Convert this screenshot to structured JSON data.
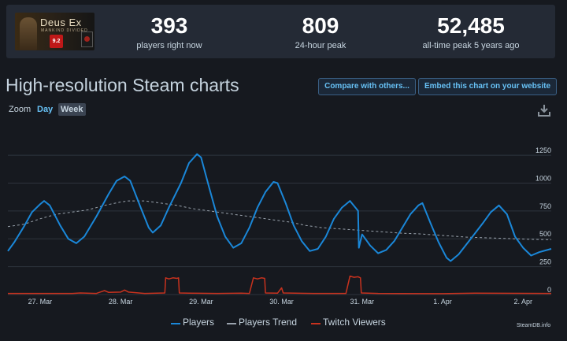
{
  "game": {
    "title": "Deus Ex",
    "subtitle": "MANKIND DIVIDED",
    "rating": "9.2"
  },
  "stats": [
    {
      "value": "393",
      "label": "players right now"
    },
    {
      "value": "809",
      "label": "24-hour peak"
    },
    {
      "value": "52,485",
      "label": "all-time peak 5 years ago"
    }
  ],
  "page": {
    "heading": "High-resolution Steam charts",
    "compare_label": "Compare with others...",
    "embed_label": "Embed this chart on your website",
    "zoom_label": "Zoom",
    "zoom_day": "Day",
    "zoom_week": "Week",
    "credit": "SteamDB.info"
  },
  "colors": {
    "players": "#1a87d8",
    "trend": "#9aa3ad",
    "twitch": "#c8321e",
    "grid": "#2e343d"
  },
  "legend": {
    "players": "Players",
    "trend": "Players Trend",
    "twitch": "Twitch Viewers"
  },
  "chart_data": {
    "type": "line",
    "title": "High-resolution Steam charts",
    "xlabel": "",
    "ylabel": "",
    "x_ticks": [
      "27. Mar",
      "28. Mar",
      "29. Mar",
      "30. Mar",
      "31. Mar",
      "1. Apr",
      "2. Apr"
    ],
    "y_ticks": [
      0,
      250,
      500,
      750,
      1000,
      1250
    ],
    "ylim": [
      0,
      1300
    ],
    "xlim": [
      26.6,
      33.35
    ],
    "series": [
      {
        "name": "Players",
        "points": [
          [
            26.6,
            390
          ],
          [
            26.68,
            470
          ],
          [
            26.8,
            610
          ],
          [
            26.9,
            740
          ],
          [
            27.0,
            810
          ],
          [
            27.05,
            840
          ],
          [
            27.12,
            800
          ],
          [
            27.25,
            620
          ],
          [
            27.35,
            500
          ],
          [
            27.45,
            460
          ],
          [
            27.55,
            520
          ],
          [
            27.7,
            700
          ],
          [
            27.85,
            900
          ],
          [
            27.95,
            1020
          ],
          [
            28.05,
            1060
          ],
          [
            28.12,
            1020
          ],
          [
            28.25,
            780
          ],
          [
            28.35,
            600
          ],
          [
            28.4,
            555
          ],
          [
            28.5,
            620
          ],
          [
            28.6,
            780
          ],
          [
            28.75,
            1000
          ],
          [
            28.85,
            1180
          ],
          [
            28.95,
            1260
          ],
          [
            29.0,
            1230
          ],
          [
            29.1,
            960
          ],
          [
            29.2,
            700
          ],
          [
            29.3,
            520
          ],
          [
            29.4,
            420
          ],
          [
            29.5,
            460
          ],
          [
            29.6,
            600
          ],
          [
            29.7,
            780
          ],
          [
            29.8,
            920
          ],
          [
            29.9,
            1010
          ],
          [
            29.95,
            1000
          ],
          [
            30.05,
            820
          ],
          [
            30.15,
            620
          ],
          [
            30.25,
            480
          ],
          [
            30.35,
            390
          ],
          [
            30.45,
            410
          ],
          [
            30.55,
            520
          ],
          [
            30.65,
            680
          ],
          [
            30.75,
            780
          ],
          [
            30.85,
            840
          ],
          [
            30.95,
            750
          ],
          [
            30.96,
            420
          ],
          [
            31.0,
            540
          ],
          [
            31.1,
            440
          ],
          [
            31.2,
            370
          ],
          [
            31.3,
            400
          ],
          [
            31.4,
            480
          ],
          [
            31.5,
            600
          ],
          [
            31.6,
            720
          ],
          [
            31.7,
            800
          ],
          [
            31.75,
            820
          ],
          [
            31.85,
            640
          ],
          [
            31.95,
            470
          ],
          [
            32.05,
            330
          ],
          [
            32.1,
            300
          ],
          [
            32.2,
            360
          ],
          [
            32.35,
            500
          ],
          [
            32.5,
            640
          ],
          [
            32.6,
            740
          ],
          [
            32.7,
            800
          ],
          [
            32.8,
            720
          ],
          [
            32.9,
            520
          ],
          [
            33.0,
            420
          ],
          [
            33.1,
            350
          ],
          [
            33.2,
            380
          ],
          [
            33.3,
            400
          ],
          [
            33.35,
            410
          ]
        ]
      },
      {
        "name": "Players Trend",
        "points": [
          [
            26.6,
            610
          ],
          [
            26.8,
            630
          ],
          [
            27.0,
            680
          ],
          [
            27.2,
            720
          ],
          [
            27.4,
            740
          ],
          [
            27.6,
            760
          ],
          [
            27.8,
            800
          ],
          [
            28.0,
            830
          ],
          [
            28.1,
            840
          ],
          [
            28.3,
            840
          ],
          [
            28.5,
            820
          ],
          [
            28.7,
            800
          ],
          [
            28.9,
            770
          ],
          [
            29.1,
            750
          ],
          [
            29.3,
            730
          ],
          [
            29.5,
            710
          ],
          [
            29.7,
            690
          ],
          [
            29.9,
            670
          ],
          [
            30.1,
            650
          ],
          [
            30.3,
            620
          ],
          [
            30.5,
            600
          ],
          [
            30.7,
            590
          ],
          [
            30.9,
            580
          ],
          [
            31.1,
            570
          ],
          [
            31.3,
            560
          ],
          [
            31.5,
            550
          ],
          [
            31.7,
            545
          ],
          [
            31.9,
            535
          ],
          [
            32.1,
            525
          ],
          [
            32.3,
            515
          ],
          [
            32.5,
            510
          ],
          [
            32.7,
            505
          ],
          [
            32.9,
            500
          ],
          [
            33.1,
            495
          ],
          [
            33.35,
            492
          ]
        ]
      },
      {
        "name": "Twitch Viewers",
        "points": [
          [
            26.6,
            10
          ],
          [
            27.4,
            10
          ],
          [
            27.5,
            14
          ],
          [
            27.7,
            10
          ],
          [
            27.8,
            35
          ],
          [
            27.85,
            20
          ],
          [
            28.0,
            22
          ],
          [
            28.05,
            40
          ],
          [
            28.1,
            22
          ],
          [
            28.3,
            10
          ],
          [
            28.55,
            14
          ],
          [
            28.56,
            150
          ],
          [
            28.6,
            140
          ],
          [
            28.65,
            150
          ],
          [
            28.7,
            145
          ],
          [
            28.72,
            150
          ],
          [
            28.73,
            14
          ],
          [
            28.85,
            12
          ],
          [
            29.2,
            10
          ],
          [
            29.5,
            12
          ],
          [
            29.6,
            10
          ],
          [
            29.65,
            150
          ],
          [
            29.7,
            140
          ],
          [
            29.75,
            150
          ],
          [
            29.79,
            145
          ],
          [
            29.8,
            14
          ],
          [
            29.95,
            12
          ],
          [
            30.0,
            60
          ],
          [
            30.02,
            14
          ],
          [
            30.4,
            10
          ],
          [
            30.8,
            10
          ],
          [
            30.85,
            165
          ],
          [
            30.9,
            155
          ],
          [
            30.95,
            160
          ],
          [
            30.98,
            150
          ],
          [
            30.99,
            14
          ],
          [
            31.2,
            10
          ],
          [
            32.0,
            8
          ],
          [
            32.4,
            12
          ],
          [
            33.35,
            10
          ]
        ]
      }
    ]
  }
}
